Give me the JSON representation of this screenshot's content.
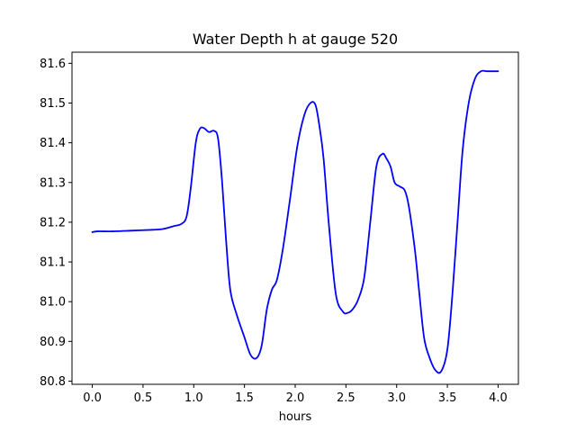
{
  "chart_data": {
    "type": "line",
    "title": "Water Depth h at gauge 520",
    "xlabel": "hours",
    "ylabel": "",
    "xlim": [
      -0.2,
      4.2
    ],
    "ylim": [
      80.792,
      81.628
    ],
    "xticks": [
      0.0,
      0.5,
      1.0,
      1.5,
      2.0,
      2.5,
      3.0,
      3.5,
      4.0
    ],
    "xtick_labels": [
      "0.0",
      "0.5",
      "1.0",
      "1.5",
      "2.0",
      "2.5",
      "3.0",
      "3.5",
      "4.0"
    ],
    "yticks": [
      80.8,
      80.9,
      81.0,
      81.1,
      81.2,
      81.3,
      81.4,
      81.5,
      81.6
    ],
    "ytick_labels": [
      "80.8",
      "80.9",
      "81.0",
      "81.1",
      "81.2",
      "81.3",
      "81.4",
      "81.5",
      "81.6"
    ],
    "grid": false,
    "series": [
      {
        "color": "#0000ff",
        "x": [
          0.0,
          0.05,
          0.2,
          0.4,
          0.6,
          0.7,
          0.8,
          0.88,
          0.93,
          0.97,
          1.02,
          1.06,
          1.1,
          1.15,
          1.2,
          1.24,
          1.28,
          1.32,
          1.36,
          1.42,
          1.5,
          1.56,
          1.62,
          1.67,
          1.72,
          1.77,
          1.82,
          1.88,
          1.95,
          2.02,
          2.09,
          2.15,
          2.2,
          2.24,
          2.28,
          2.33,
          2.4,
          2.47,
          2.52,
          2.57,
          2.62,
          2.68,
          2.74,
          2.8,
          2.86,
          2.9,
          2.94,
          2.98,
          3.03,
          3.08,
          3.12,
          3.18,
          3.22,
          3.27,
          3.32,
          3.38,
          3.44,
          3.5,
          3.55,
          3.6,
          3.65,
          3.71,
          3.77,
          3.83,
          3.89,
          3.94,
          3.97,
          4.0
        ],
        "y": [
          81.175,
          81.177,
          81.177,
          81.179,
          81.181,
          81.183,
          81.19,
          81.196,
          81.215,
          81.285,
          81.4,
          81.435,
          81.437,
          81.427,
          81.43,
          81.41,
          81.3,
          81.15,
          81.03,
          80.97,
          80.91,
          80.866,
          80.858,
          80.89,
          80.98,
          81.03,
          81.055,
          81.135,
          81.26,
          81.39,
          81.47,
          81.5,
          81.495,
          81.44,
          81.36,
          81.2,
          81.02,
          80.975,
          80.972,
          80.982,
          81.005,
          81.06,
          81.2,
          81.34,
          81.372,
          81.36,
          81.34,
          81.3,
          81.29,
          81.28,
          81.24,
          81.13,
          81.03,
          80.91,
          80.862,
          80.828,
          80.825,
          80.88,
          81.02,
          81.2,
          81.38,
          81.5,
          81.56,
          81.58,
          81.58,
          81.58,
          81.58,
          81.58
        ]
      }
    ]
  }
}
